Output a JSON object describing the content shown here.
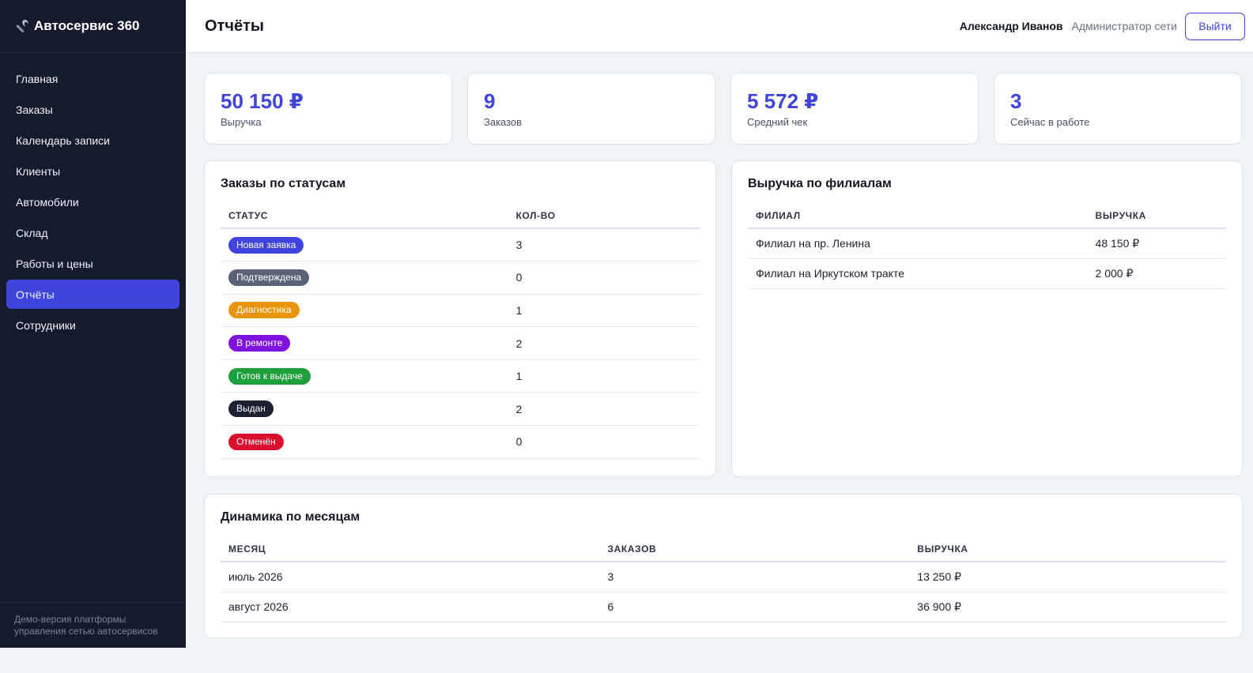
{
  "brand": {
    "title": "Автосервис 360",
    "icon": "wrench-icon"
  },
  "sidebar": {
    "items": [
      {
        "label": "Главная",
        "active": false
      },
      {
        "label": "Заказы",
        "active": false
      },
      {
        "label": "Календарь записи",
        "active": false
      },
      {
        "label": "Клиенты",
        "active": false
      },
      {
        "label": "Автомобили",
        "active": false
      },
      {
        "label": "Склад",
        "active": false
      },
      {
        "label": "Работы и цены",
        "active": false
      },
      {
        "label": "Отчёты",
        "active": true
      },
      {
        "label": "Сотрудники",
        "active": false
      }
    ],
    "footer_line1": "Демо-версия платформы",
    "footer_line2": "управления сетью автосервисов"
  },
  "header": {
    "title": "Отчёты",
    "user_name": "Александр Иванов",
    "user_role": "Администратор сети",
    "logout_label": "Выйти"
  },
  "stats": [
    {
      "value": "50 150 ₽",
      "label": "Выручка"
    },
    {
      "value": "9",
      "label": "Заказов"
    },
    {
      "value": "5 572 ₽",
      "label": "Средний чек"
    },
    {
      "value": "3",
      "label": "Сейчас в работе"
    }
  ],
  "status_panel": {
    "title": "Заказы по статусам",
    "col_status": "Статус",
    "col_count": "Кол-во",
    "rows": [
      {
        "status": "Новая заявка",
        "count": "3",
        "color": "#3e44dc"
      },
      {
        "status": "Подтверждена",
        "count": "0",
        "color": "#5b6378"
      },
      {
        "status": "Диагностика",
        "count": "1",
        "color": "#e8950c"
      },
      {
        "status": "В ремонте",
        "count": "2",
        "color": "#7f12dc"
      },
      {
        "status": "Готов к выдаче",
        "count": "1",
        "color": "#1f9e3c"
      },
      {
        "status": "Выдан",
        "count": "2",
        "color": "#1d2233"
      },
      {
        "status": "Отменён",
        "count": "0",
        "color": "#d8102e"
      }
    ]
  },
  "branch_panel": {
    "title": "Выручка по филиалам",
    "col_branch": "Филиал",
    "col_revenue": "Выручка",
    "rows": [
      {
        "branch": "Филиал на пр. Ленина",
        "revenue": "48 150 ₽"
      },
      {
        "branch": "Филиал на Иркутском тракте",
        "revenue": "2 000 ₽"
      }
    ]
  },
  "month_panel": {
    "title": "Динамика по месяцам",
    "col_month": "Месяц",
    "col_orders": "Заказов",
    "col_revenue": "Выручка",
    "rows": [
      {
        "month": "июль 2026",
        "orders": "3",
        "revenue": "13 250 ₽"
      },
      {
        "month": "август 2026",
        "orders": "6",
        "revenue": "36 900 ₽"
      }
    ]
  }
}
